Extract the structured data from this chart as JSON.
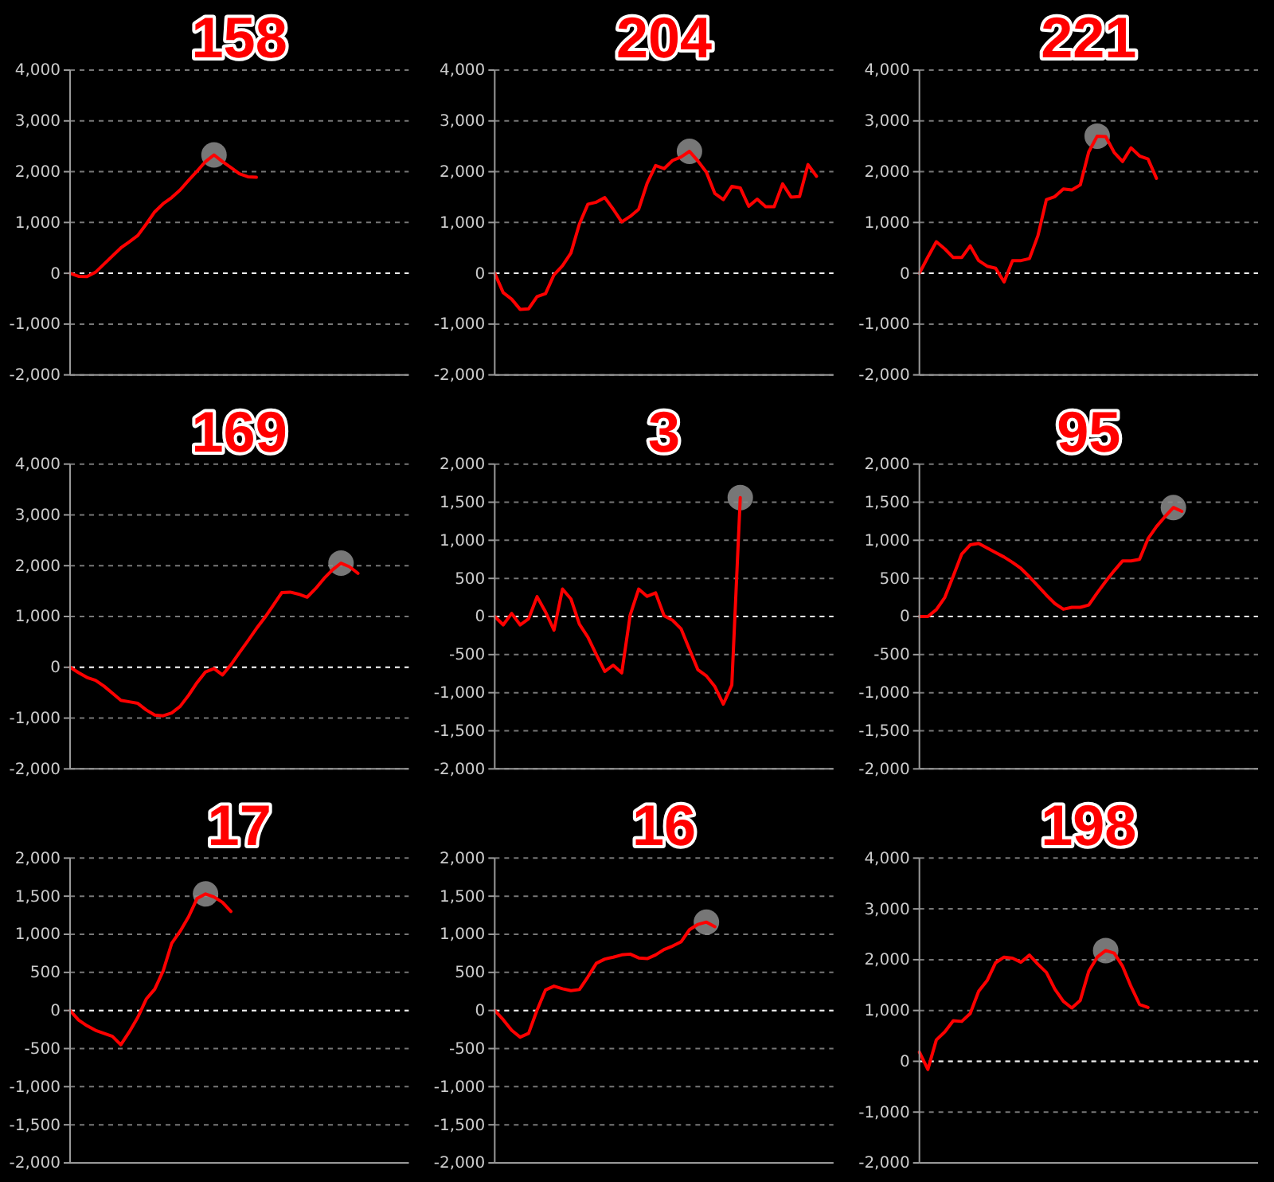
{
  "chart_data": [
    {
      "type": "line",
      "title": "158",
      "ref_lines": [
        {
          "axis": "y",
          "value": 0,
          "color": "#eeeeee",
          "line_style": "dashed"
        }
      ],
      "categories": [
        null,
        null,
        null,
        null,
        null,
        null,
        null,
        null,
        null,
        null,
        null,
        null,
        null,
        null,
        null,
        null,
        null,
        null,
        null,
        null,
        null,
        null,
        null,
        null,
        null,
        null,
        null,
        null,
        null,
        null,
        null,
        null,
        null,
        null,
        null,
        null,
        null,
        null,
        null,
        null,
        null
      ],
      "ylim": [
        -2000,
        4000
      ],
      "yticks": [
        {
          "value": -2000,
          "label": "-2,000"
        },
        {
          "value": -1000,
          "label": "-1,000"
        },
        0,
        {
          "value": 1000,
          "label": "1,000"
        },
        {
          "value": 2000,
          "label": "2,000"
        },
        {
          "value": 3000,
          "label": "3,000"
        },
        {
          "value": 4000,
          "label": "4,000"
        }
      ],
      "tick_labels": "y",
      "grid": "y",
      "series": [
        {
          "color": "#ff0000",
          "values": [
            0,
            -60,
            -65,
            20,
            180,
            340,
            500,
            620,
            745,
            970,
            1210,
            1370,
            1490,
            1640,
            1830,
            2010,
            2200,
            2330,
            2200,
            2080,
            1960,
            1900,
            1890,
            null,
            null,
            null,
            null,
            null,
            null,
            null,
            null,
            null,
            null,
            null,
            null,
            null,
            null,
            null,
            null,
            null,
            null
          ]
        }
      ]
    },
    {
      "type": "line",
      "title": "204",
      "ref_lines": [
        {
          "axis": "y",
          "value": 0,
          "color": "#eeeeee",
          "line_style": "dashed"
        }
      ],
      "categories": [
        null,
        null,
        null,
        null,
        null,
        null,
        null,
        null,
        null,
        null,
        null,
        null,
        null,
        null,
        null,
        null,
        null,
        null,
        null,
        null,
        null,
        null,
        null,
        null,
        null,
        null,
        null,
        null,
        null,
        null,
        null,
        null,
        null,
        null,
        null,
        null,
        null,
        null,
        null,
        null,
        null
      ],
      "ylim": [
        -2000,
        4000
      ],
      "yticks": [
        {
          "value": -2000,
          "label": "-2,000"
        },
        {
          "value": -1000,
          "label": "-1,000"
        },
        0,
        {
          "value": 1000,
          "label": "1,000"
        },
        {
          "value": 2000,
          "label": "2,000"
        },
        {
          "value": 3000,
          "label": "3,000"
        },
        {
          "value": 4000,
          "label": "4,000"
        }
      ],
      "tick_labels": "y",
      "grid": "y",
      "series": [
        {
          "color": "#ff0000",
          "values": [
            0,
            -380,
            -510,
            -710,
            -700,
            -460,
            -400,
            -30,
            150,
            400,
            970,
            1360,
            1400,
            1490,
            1260,
            1010,
            1120,
            1260,
            1770,
            2120,
            2060,
            2220,
            2290,
            2400,
            2210,
            1990,
            1570,
            1450,
            1710,
            1680,
            1320,
            1460,
            1310,
            1310,
            1760,
            1500,
            1510,
            2140,
            1910,
            null,
            null
          ]
        }
      ]
    },
    {
      "type": "line",
      "title": "221",
      "ref_lines": [
        {
          "axis": "y",
          "value": 0,
          "color": "#eeeeee",
          "line_style": "dashed"
        }
      ],
      "categories": [
        null,
        null,
        null,
        null,
        null,
        null,
        null,
        null,
        null,
        null,
        null,
        null,
        null,
        null,
        null,
        null,
        null,
        null,
        null,
        null,
        null,
        null,
        null,
        null,
        null,
        null,
        null,
        null,
        null,
        null,
        null,
        null,
        null,
        null,
        null,
        null,
        null,
        null,
        null,
        null,
        null
      ],
      "ylim": [
        -2000,
        4000
      ],
      "yticks": [
        {
          "value": -2000,
          "label": "-2,000"
        },
        {
          "value": -1000,
          "label": "-1,000"
        },
        0,
        {
          "value": 1000,
          "label": "1,000"
        },
        {
          "value": 2000,
          "label": "2,000"
        },
        {
          "value": 3000,
          "label": "3,000"
        },
        {
          "value": 4000,
          "label": "4,000"
        }
      ],
      "tick_labels": "y",
      "grid": "y",
      "series": [
        {
          "color": "#ff0000",
          "values": [
            0,
            320,
            620,
            480,
            310,
            310,
            540,
            250,
            140,
            100,
            -170,
            250,
            250,
            290,
            740,
            1450,
            1510,
            1660,
            1640,
            1740,
            2390,
            2700,
            2690,
            2380,
            2200,
            2470,
            2310,
            2250,
            1870,
            null,
            null,
            null,
            null,
            null,
            null,
            null,
            null,
            null,
            null,
            null,
            null
          ]
        }
      ]
    },
    {
      "type": "line",
      "title": "169",
      "ref_lines": [
        {
          "axis": "y",
          "value": 0,
          "color": "#eeeeee",
          "line_style": "dashed"
        }
      ],
      "categories": [
        null,
        null,
        null,
        null,
        null,
        null,
        null,
        null,
        null,
        null,
        null,
        null,
        null,
        null,
        null,
        null,
        null,
        null,
        null,
        null,
        null,
        null,
        null,
        null,
        null,
        null,
        null,
        null,
        null,
        null,
        null,
        null,
        null,
        null,
        null,
        null,
        null,
        null,
        null,
        null,
        null
      ],
      "ylim": [
        -2000,
        4000
      ],
      "yticks": [
        {
          "value": -2000,
          "label": "-2,000"
        },
        {
          "value": -1000,
          "label": "-1,000"
        },
        0,
        {
          "value": 1000,
          "label": "1,000"
        },
        {
          "value": 2000,
          "label": "2,000"
        },
        {
          "value": 3000,
          "label": "3,000"
        },
        {
          "value": 4000,
          "label": "4,000"
        }
      ],
      "tick_labels": "y",
      "grid": "y",
      "series": [
        {
          "color": "#ff0000",
          "values": [
            0,
            -105,
            -200,
            -255,
            -370,
            -510,
            -650,
            -680,
            -710,
            -840,
            -940,
            -955,
            -900,
            -770,
            -550,
            -300,
            -90,
            -25,
            -150,
            50,
            290,
            520,
            760,
            980,
            1220,
            1470,
            1480,
            1440,
            1380,
            1550,
            1750,
            1920,
            2050,
            1980,
            1850,
            null,
            null,
            null,
            null,
            null,
            null
          ]
        }
      ]
    },
    {
      "type": "line",
      "title": "3",
      "ref_lines": [
        {
          "axis": "y",
          "value": 0,
          "color": "#eeeeee",
          "line_style": "dashed"
        }
      ],
      "categories": [
        null,
        null,
        null,
        null,
        null,
        null,
        null,
        null,
        null,
        null,
        null,
        null,
        null,
        null,
        null,
        null,
        null,
        null,
        null,
        null,
        null,
        null,
        null,
        null,
        null,
        null,
        null,
        null,
        null,
        null,
        null,
        null,
        null,
        null,
        null,
        null,
        null,
        null,
        null,
        null,
        null
      ],
      "ylim": [
        -2000,
        2000
      ],
      "yticks": [
        {
          "value": -2000,
          "label": "-2,000"
        },
        {
          "value": -1500,
          "label": "-1,500"
        },
        {
          "value": -1000,
          "label": "-1,000"
        },
        -500,
        0,
        500,
        {
          "value": 1000,
          "label": "1,000"
        },
        {
          "value": 1500,
          "label": "1,500"
        },
        {
          "value": 2000,
          "label": "2,000"
        }
      ],
      "tick_labels": "y",
      "grid": "y",
      "series": [
        {
          "color": "#ff0000",
          "values": [
            0,
            -110,
            40,
            -110,
            -30,
            260,
            60,
            -180,
            360,
            230,
            -100,
            -270,
            -500,
            -720,
            -640,
            -740,
            20,
            360,
            265,
            310,
            10,
            -50,
            -160,
            -430,
            -700,
            -780,
            -920,
            -1150,
            -900,
            1560,
            null,
            null,
            null,
            null,
            null,
            null,
            null,
            null,
            null,
            null,
            null
          ]
        }
      ]
    },
    {
      "type": "line",
      "title": "95",
      "ref_lines": [
        {
          "axis": "y",
          "value": 0,
          "color": "#eeeeee",
          "line_style": "dashed"
        }
      ],
      "categories": [
        null,
        null,
        null,
        null,
        null,
        null,
        null,
        null,
        null,
        null,
        null,
        null,
        null,
        null,
        null,
        null,
        null,
        null,
        null,
        null,
        null,
        null,
        null,
        null,
        null,
        null,
        null,
        null,
        null,
        null,
        null,
        null,
        null,
        null,
        null,
        null,
        null,
        null,
        null,
        null,
        null
      ],
      "ylim": [
        -2000,
        2000
      ],
      "yticks": [
        {
          "value": -2000,
          "label": "-2,000"
        },
        {
          "value": -1500,
          "label": "-1,500"
        },
        {
          "value": -1000,
          "label": "-1,000"
        },
        -500,
        0,
        500,
        {
          "value": 1000,
          "label": "1,000"
        },
        {
          "value": 1500,
          "label": "1,500"
        },
        {
          "value": 2000,
          "label": "2,000"
        }
      ],
      "tick_labels": "y",
      "grid": "y",
      "series": [
        {
          "color": "#ff0000",
          "values": [
            0,
            0,
            90,
            250,
            530,
            820,
            940,
            960,
            900,
            840,
            780,
            710,
            630,
            520,
            400,
            280,
            170,
            95,
            120,
            120,
            150,
            310,
            460,
            600,
            730,
            730,
            750,
            1020,
            1180,
            1310,
            1430,
            1380,
            null,
            null,
            null,
            null,
            null,
            null,
            null,
            null,
            null
          ]
        }
      ]
    },
    {
      "type": "line",
      "title": "17",
      "ref_lines": [
        {
          "axis": "y",
          "value": 0,
          "color": "#eeeeee",
          "line_style": "dashed"
        }
      ],
      "categories": [
        null,
        null,
        null,
        null,
        null,
        null,
        null,
        null,
        null,
        null,
        null,
        null,
        null,
        null,
        null,
        null,
        null,
        null,
        null,
        null,
        null,
        null,
        null,
        null,
        null,
        null,
        null,
        null,
        null,
        null,
        null,
        null,
        null,
        null,
        null,
        null,
        null,
        null,
        null,
        null,
        null
      ],
      "ylim": [
        -2000,
        2000
      ],
      "yticks": [
        {
          "value": -2000,
          "label": "-2,000"
        },
        {
          "value": -1500,
          "label": "-1,500"
        },
        {
          "value": -1000,
          "label": "-1,000"
        },
        -500,
        0,
        500,
        {
          "value": 1000,
          "label": "1,000"
        },
        {
          "value": 1500,
          "label": "1,500"
        },
        {
          "value": 2000,
          "label": "2,000"
        }
      ],
      "tick_labels": "y",
      "grid": "y",
      "series": [
        {
          "color": "#ff0000",
          "values": [
            0,
            -125,
            -200,
            -260,
            -300,
            -340,
            -450,
            -280,
            -90,
            150,
            280,
            520,
            880,
            1040,
            1230,
            1470,
            1530,
            1490,
            1420,
            1300,
            null,
            null,
            null,
            null,
            null,
            null,
            null,
            null,
            null,
            null,
            null,
            null,
            null,
            null,
            null,
            null,
            null,
            null,
            null,
            null,
            null
          ]
        }
      ]
    },
    {
      "type": "line",
      "title": "16",
      "ref_lines": [
        {
          "axis": "y",
          "value": 0,
          "color": "#eeeeee",
          "line_style": "dashed"
        }
      ],
      "categories": [
        null,
        null,
        null,
        null,
        null,
        null,
        null,
        null,
        null,
        null,
        null,
        null,
        null,
        null,
        null,
        null,
        null,
        null,
        null,
        null,
        null,
        null,
        null,
        null,
        null,
        null,
        null,
        null,
        null,
        null,
        null,
        null,
        null,
        null,
        null,
        null,
        null,
        null,
        null,
        null,
        null
      ],
      "ylim": [
        -2000,
        2000
      ],
      "yticks": [
        {
          "value": -2000,
          "label": "-2,000"
        },
        {
          "value": -1500,
          "label": "-1,500"
        },
        {
          "value": -1000,
          "label": "-1,000"
        },
        -500,
        0,
        500,
        {
          "value": 1000,
          "label": "1,000"
        },
        {
          "value": 1500,
          "label": "1,500"
        },
        {
          "value": 2000,
          "label": "2,000"
        }
      ],
      "tick_labels": "y",
      "grid": "y",
      "series": [
        {
          "color": "#ff0000",
          "values": [
            0,
            -120,
            -260,
            -350,
            -300,
            5,
            270,
            320,
            285,
            260,
            275,
            440,
            620,
            675,
            700,
            730,
            740,
            690,
            680,
            730,
            800,
            845,
            900,
            1060,
            1130,
            1160,
            1100,
            null,
            null,
            null,
            null,
            null,
            null,
            null,
            null,
            null,
            null,
            null,
            null,
            null,
            null
          ]
        }
      ]
    },
    {
      "type": "line",
      "title": "198",
      "ref_lines": [
        {
          "axis": "y",
          "value": 0,
          "color": "#eeeeee",
          "line_style": "dashed"
        }
      ],
      "categories": [
        null,
        null,
        null,
        null,
        null,
        null,
        null,
        null,
        null,
        null,
        null,
        null,
        null,
        null,
        null,
        null,
        null,
        null,
        null,
        null,
        null,
        null,
        null,
        null,
        null,
        null,
        null,
        null,
        null,
        null,
        null,
        null,
        null,
        null,
        null,
        null,
        null,
        null,
        null,
        null,
        null
      ],
      "ylim": [
        -2000,
        4000
      ],
      "yticks": [
        {
          "value": -2000,
          "label": "-2,000"
        },
        {
          "value": -1000,
          "label": "-1,000"
        },
        0,
        {
          "value": 1000,
          "label": "1,000"
        },
        {
          "value": 2000,
          "label": "2,000"
        },
        {
          "value": 3000,
          "label": "3,000"
        },
        {
          "value": 4000,
          "label": "4,000"
        }
      ],
      "tick_labels": "y",
      "grid": "y",
      "series": [
        {
          "color": "#ff0000",
          "values": [
            180,
            -160,
            420,
            580,
            800,
            785,
            940,
            1380,
            1590,
            1940,
            2050,
            2030,
            1950,
            2090,
            1910,
            1750,
            1420,
            1180,
            1050,
            1200,
            1770,
            2050,
            2180,
            2130,
            1870,
            1470,
            1120,
            1060,
            null,
            null,
            null,
            null,
            null,
            null,
            null,
            null,
            null,
            null,
            null,
            null,
            null
          ]
        }
      ]
    }
  ]
}
